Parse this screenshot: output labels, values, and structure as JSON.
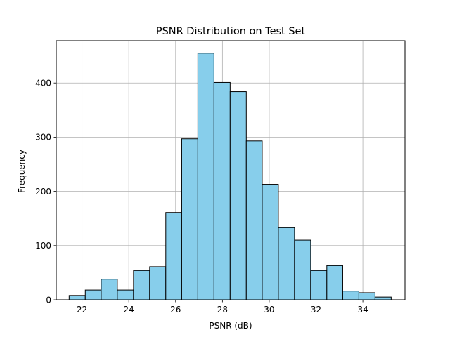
{
  "chart_data": {
    "type": "bar",
    "title": "PSNR Distribution on Test Set",
    "xlabel": "PSNR (dB)",
    "ylabel": "Frequency",
    "xlim": [
      20.9,
      35.8
    ],
    "ylim": [
      0,
      478
    ],
    "xticks": [
      "22",
      "24",
      "26",
      "28",
      "30",
      "32",
      "34"
    ],
    "yticks": [
      "0",
      "100",
      "200",
      "300",
      "400"
    ],
    "grid": true,
    "bar_color": "#87CEEB",
    "edge_color": "#000000",
    "bins": [
      {
        "x0": 21.45,
        "x1": 22.14,
        "count": 8
      },
      {
        "x0": 22.14,
        "x1": 22.82,
        "count": 18
      },
      {
        "x0": 22.82,
        "x1": 23.51,
        "count": 38
      },
      {
        "x0": 23.51,
        "x1": 24.2,
        "count": 18
      },
      {
        "x0": 24.2,
        "x1": 24.89,
        "count": 54
      },
      {
        "x0": 24.89,
        "x1": 25.58,
        "count": 61
      },
      {
        "x0": 25.58,
        "x1": 26.26,
        "count": 161
      },
      {
        "x0": 26.26,
        "x1": 26.95,
        "count": 297
      },
      {
        "x0": 26.95,
        "x1": 27.64,
        "count": 455
      },
      {
        "x0": 27.64,
        "x1": 28.33,
        "count": 401
      },
      {
        "x0": 28.33,
        "x1": 29.02,
        "count": 384
      },
      {
        "x0": 29.02,
        "x1": 29.7,
        "count": 293
      },
      {
        "x0": 29.7,
        "x1": 30.39,
        "count": 213
      },
      {
        "x0": 30.39,
        "x1": 31.08,
        "count": 133
      },
      {
        "x0": 31.08,
        "x1": 31.77,
        "count": 110
      },
      {
        "x0": 31.77,
        "x1": 32.46,
        "count": 54
      },
      {
        "x0": 32.46,
        "x1": 33.14,
        "count": 63
      },
      {
        "x0": 33.14,
        "x1": 33.83,
        "count": 16
      },
      {
        "x0": 33.83,
        "x1": 34.52,
        "count": 13
      },
      {
        "x0": 34.52,
        "x1": 35.21,
        "count": 5
      }
    ]
  }
}
